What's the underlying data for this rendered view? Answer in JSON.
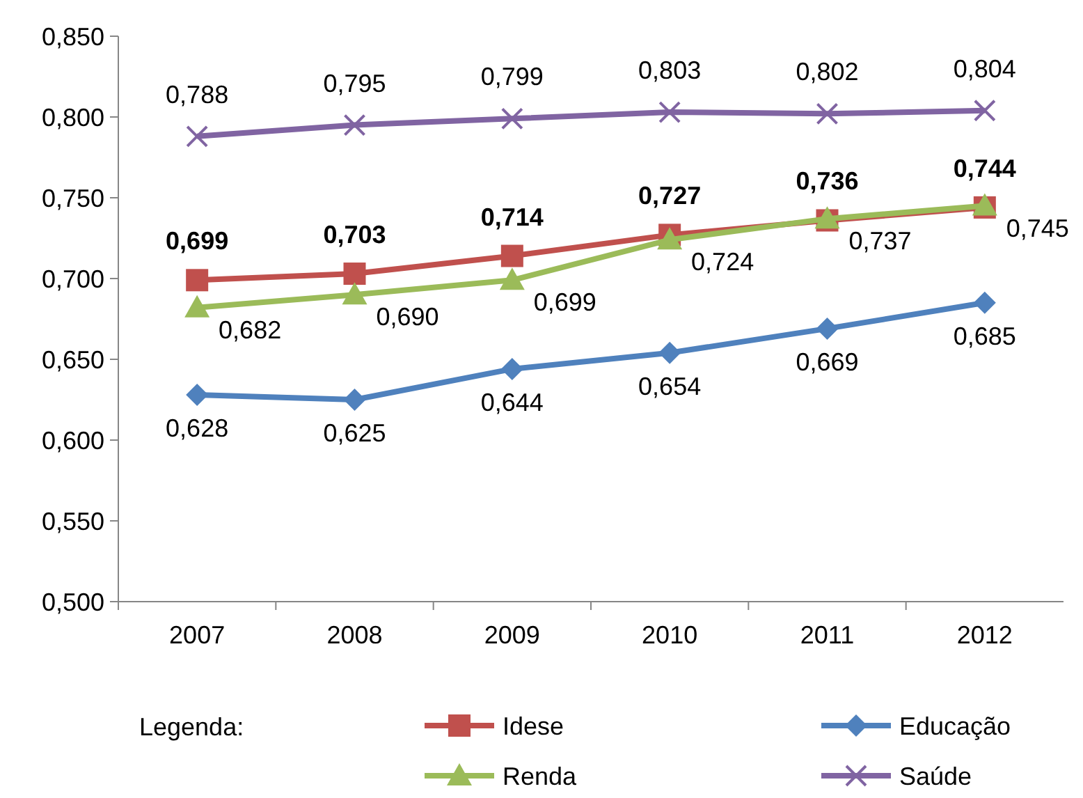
{
  "chart_data": {
    "type": "line",
    "categories": [
      "2007",
      "2008",
      "2009",
      "2010",
      "2011",
      "2012"
    ],
    "ylim": [
      0.5,
      0.85
    ],
    "yticks": [
      {
        "value": 0.5,
        "label": "0,500"
      },
      {
        "value": 0.55,
        "label": "0,550"
      },
      {
        "value": 0.6,
        "label": "0,600"
      },
      {
        "value": 0.65,
        "label": "0,650"
      },
      {
        "value": 0.7,
        "label": "0,700"
      },
      {
        "value": 0.75,
        "label": "0,750"
      },
      {
        "value": 0.8,
        "label": "0,800"
      },
      {
        "value": 0.85,
        "label": "0,850"
      }
    ],
    "grid": false,
    "legend": "bottom",
    "legend_title": "Legenda:",
    "series": [
      {
        "name": "Idese",
        "color": "#c0504d",
        "marker": "square",
        "values": [
          0.699,
          0.703,
          0.714,
          0.727,
          0.736,
          0.744
        ],
        "value_labels": [
          "0,699",
          "0,703",
          "0,714",
          "0,727",
          "0,736",
          "0,744"
        ]
      },
      {
        "name": "Educação",
        "color": "#4f81bd",
        "marker": "diamond",
        "values": [
          0.628,
          0.625,
          0.644,
          0.654,
          0.669,
          0.685
        ],
        "value_labels": [
          "0,628",
          "0,625",
          "0,644",
          "0,654",
          "0,669",
          "0,685"
        ]
      },
      {
        "name": "Renda",
        "color": "#9bbb59",
        "marker": "triangle",
        "values": [
          0.682,
          0.69,
          0.699,
          0.724,
          0.737,
          0.745
        ],
        "value_labels": [
          "0,682",
          "0,690",
          "0,699",
          "0,724",
          "0,737",
          "0,745"
        ]
      },
      {
        "name": "Saúde",
        "color": "#8064a2",
        "marker": "cross",
        "values": [
          0.788,
          0.795,
          0.799,
          0.803,
          0.802,
          0.804
        ],
        "value_labels": [
          "0,788",
          "0,795",
          "0,799",
          "0,803",
          "0,802",
          "0,804"
        ]
      }
    ]
  }
}
